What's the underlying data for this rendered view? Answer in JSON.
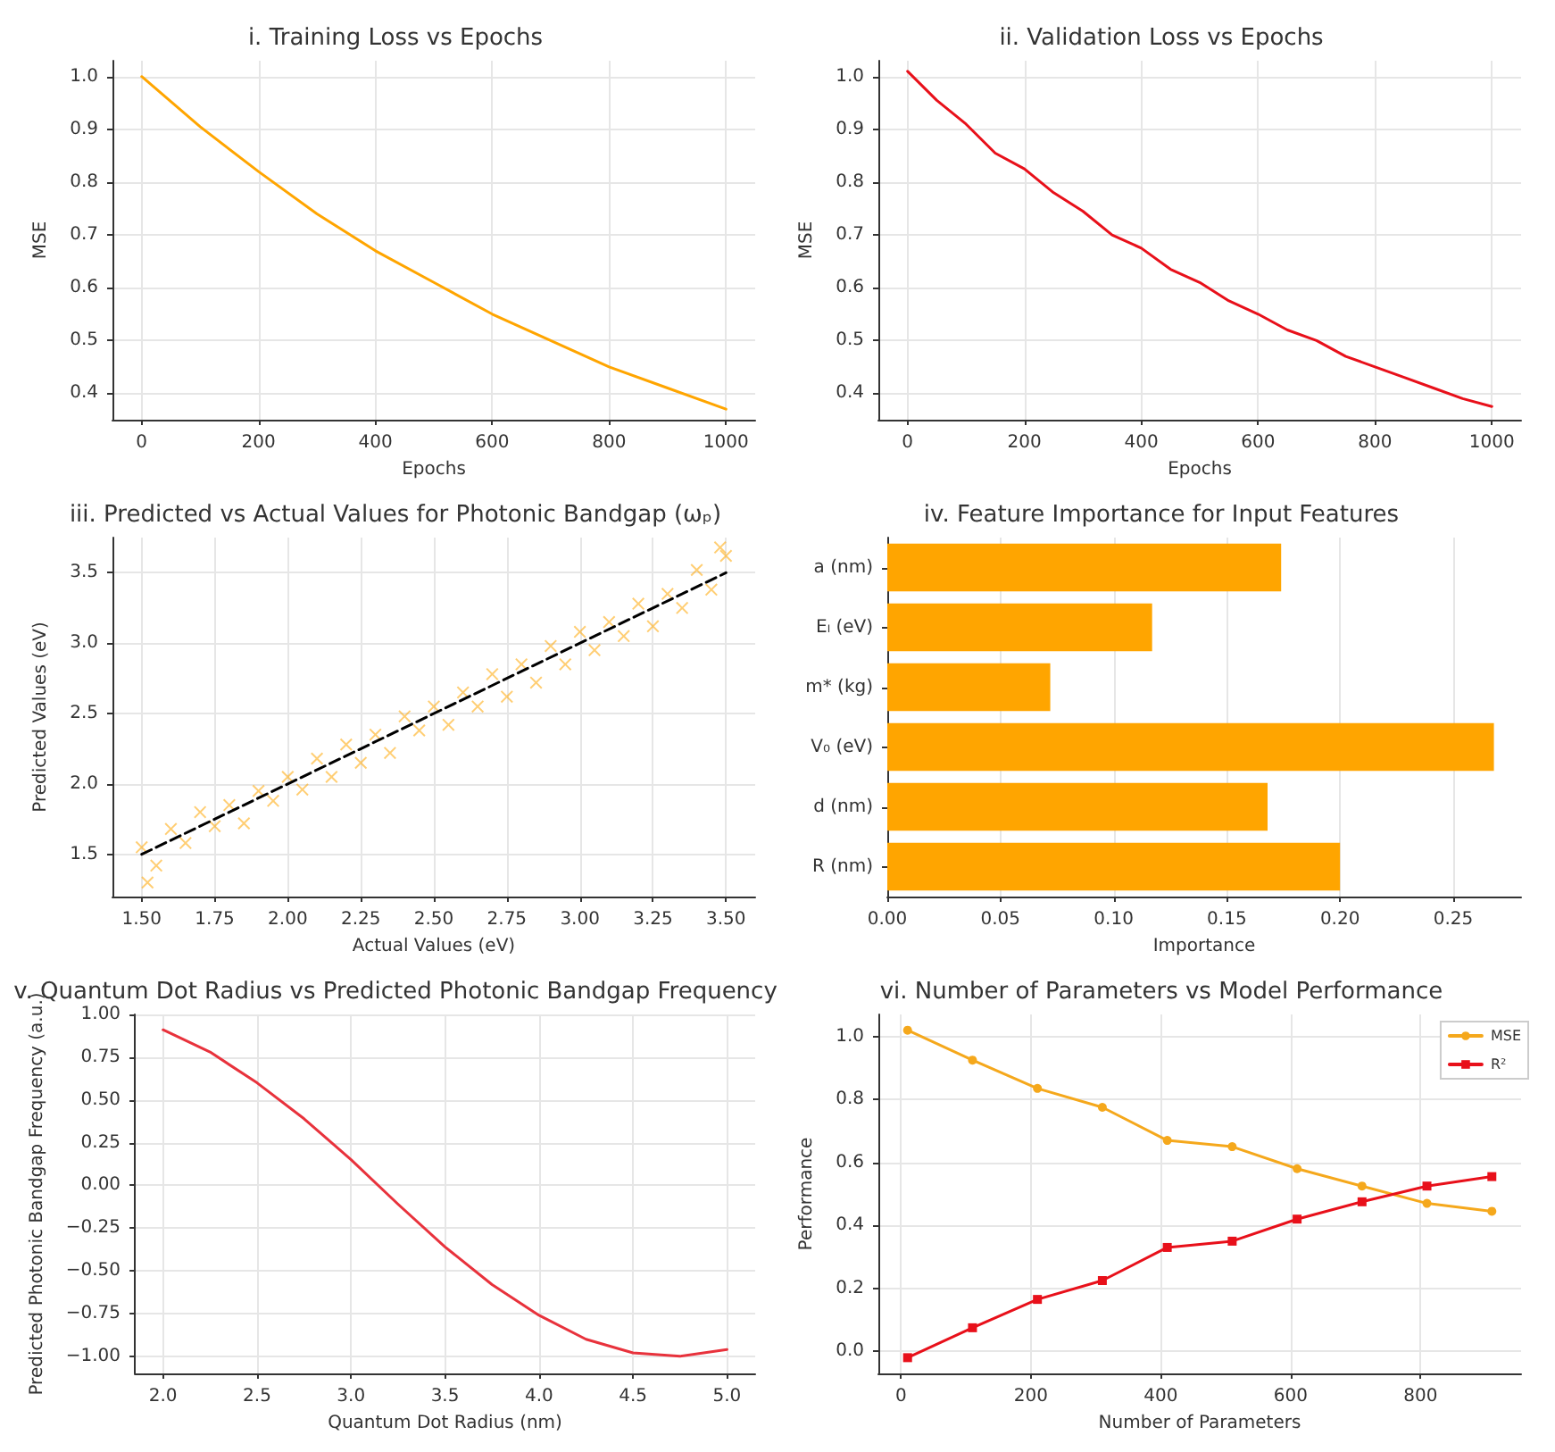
{
  "chart_data": [
    {
      "type": "line",
      "title": "i. Training Loss vs Epochs",
      "xlabel": "Epochs",
      "ylabel": "MSE",
      "grid": true,
      "xlim": [
        -50,
        1050
      ],
      "ylim": [
        0.35,
        1.03
      ],
      "xticks": [
        0,
        200,
        400,
        600,
        800,
        1000
      ],
      "yticks": [
        0.4,
        0.5,
        0.6,
        0.7,
        0.8,
        0.9,
        {
          "value": 1,
          "label": "1.0"
        }
      ],
      "x": [
        0,
        100,
        200,
        300,
        400,
        500,
        600,
        700,
        800,
        900,
        1000
      ],
      "series": [
        {
          "color": "#ffa500",
          "values": [
            1.0,
            0.905,
            0.82,
            0.74,
            0.67,
            0.61,
            0.55,
            0.5,
            0.45,
            0.41,
            0.37
          ]
        }
      ]
    },
    {
      "type": "line",
      "title": "ii. Validation Loss vs Epochs",
      "xlabel": "Epochs",
      "ylabel": "MSE",
      "grid": true,
      "xlim": [
        -50,
        1050
      ],
      "ylim": [
        0.35,
        1.03
      ],
      "xticks": [
        0,
        200,
        400,
        600,
        800,
        1000
      ],
      "yticks": [
        0.4,
        0.5,
        0.6,
        0.7,
        0.8,
        0.9,
        {
          "value": 1,
          "label": "1.0"
        }
      ],
      "x": [
        0,
        50,
        100,
        150,
        200,
        250,
        300,
        350,
        400,
        450,
        500,
        550,
        600,
        650,
        700,
        750,
        800,
        850,
        900,
        950,
        1000
      ],
      "series": [
        {
          "color": "#e8101a",
          "values": [
            1.01,
            0.955,
            0.91,
            0.855,
            0.825,
            0.78,
            0.745,
            0.7,
            0.675,
            0.635,
            0.61,
            0.575,
            0.55,
            0.52,
            0.5,
            0.47,
            0.45,
            0.43,
            0.41,
            0.39,
            0.375
          ]
        }
      ]
    },
    {
      "type": "scatter",
      "title": "iii. Predicted vs Actual Values for Photonic Bandgap (ωₚ)",
      "xlabel": "Actual Values (eV)",
      "ylabel": "Predicted Values (eV)",
      "grid": true,
      "xlim": [
        1.4,
        3.6
      ],
      "ylim": [
        1.2,
        3.75
      ],
      "xticks": [
        {
          "value": 1.5,
          "label": "1.50"
        },
        1.75,
        {
          "value": 2,
          "label": "2.00"
        },
        2.25,
        {
          "value": 2.5,
          "label": "2.50"
        },
        2.75,
        {
          "value": 3,
          "label": "3.00"
        },
        3.25,
        {
          "value": 3.5,
          "label": "3.50"
        }
      ],
      "yticks": [
        1.5,
        {
          "value": 2,
          "label": "2.0"
        },
        2.5,
        {
          "value": 3,
          "label": "3.0"
        },
        3.5
      ],
      "series": [
        {
          "color": "#ffa500",
          "marker": "cross",
          "x": [
            1.5,
            1.52,
            1.55,
            1.6,
            1.65,
            1.7,
            1.75,
            1.8,
            1.85,
            1.9,
            1.95,
            2.0,
            2.05,
            2.1,
            2.15,
            2.2,
            2.25,
            2.3,
            2.35,
            2.4,
            2.45,
            2.5,
            2.55,
            2.6,
            2.65,
            2.7,
            2.75,
            2.8,
            2.85,
            2.9,
            2.95,
            3.0,
            3.05,
            3.1,
            3.15,
            3.2,
            3.25,
            3.3,
            3.35,
            3.4,
            3.45,
            3.48,
            3.5
          ],
          "values": [
            1.55,
            1.3,
            1.42,
            1.68,
            1.58,
            1.8,
            1.7,
            1.85,
            1.72,
            1.95,
            1.88,
            2.05,
            1.96,
            2.18,
            2.05,
            2.28,
            2.15,
            2.35,
            2.22,
            2.48,
            2.38,
            2.55,
            2.42,
            2.65,
            2.55,
            2.78,
            2.62,
            2.85,
            2.72,
            2.98,
            2.85,
            3.08,
            2.95,
            3.15,
            3.05,
            3.28,
            3.12,
            3.35,
            3.25,
            3.52,
            3.38,
            3.68,
            3.62
          ]
        },
        {
          "type": "line",
          "color": "#000000",
          "line_style": "dashed",
          "marker": "none",
          "x": [
            1.5,
            3.5
          ],
          "values": [
            1.5,
            3.5
          ]
        }
      ]
    },
    {
      "type": "bar",
      "orientation": "horizontal",
      "title": "iv. Feature Importance for Input Features",
      "xlabel": "Importance",
      "grid": true,
      "xlim": [
        0,
        0.28
      ],
      "xticks": [
        {
          "value": 0,
          "label": "0.00"
        },
        0.05,
        {
          "value": 0.1,
          "label": "0.10"
        },
        0.15,
        {
          "value": 0.2,
          "label": "0.20"
        },
        0.25
      ],
      "categories": [
        "a (nm)",
        "Eₗ (eV)",
        "m* (kg)",
        "V₀ (eV)",
        "d (nm)",
        "R (nm)"
      ],
      "series": [
        {
          "color": "#ffa500",
          "values": [
            0.174,
            0.117,
            0.072,
            0.268,
            0.168,
            0.2
          ]
        }
      ]
    },
    {
      "type": "line",
      "title": "v. Quantum Dot Radius vs Predicted Photonic Bandgap Frequency",
      "xlabel": "Quantum Dot Radius (nm)",
      "ylabel": "Predicted Photonic Bandgap Frequency (a.u.)",
      "grid": true,
      "xlim": [
        1.85,
        5.15
      ],
      "ylim": [
        -1.1,
        1.0
      ],
      "xticks": [
        {
          "value": 2,
          "label": "2.0"
        },
        2.5,
        {
          "value": 3,
          "label": "3.0"
        },
        3.5,
        {
          "value": 4,
          "label": "4.0"
        },
        4.5,
        {
          "value": 5,
          "label": "5.0"
        }
      ],
      "yticks": [
        {
          "value": -1,
          "label": "−1.00"
        },
        {
          "value": -0.75,
          "label": "−0.75"
        },
        {
          "value": -0.5,
          "label": "−0.50"
        },
        {
          "value": -0.25,
          "label": "−0.25"
        },
        {
          "value": 0,
          "label": "0.00"
        },
        0.25,
        {
          "value": 0.5,
          "label": "0.50"
        },
        0.75,
        {
          "value": 1,
          "label": "1.00"
        }
      ],
      "x": [
        2.0,
        2.25,
        2.5,
        2.75,
        3.0,
        3.25,
        3.5,
        3.75,
        4.0,
        4.25,
        4.5,
        4.75,
        5.0
      ],
      "series": [
        {
          "color": "#e8323c",
          "values": [
            0.91,
            0.78,
            0.6,
            0.39,
            0.15,
            -0.11,
            -0.36,
            -0.58,
            -0.76,
            -0.9,
            -0.98,
            -1.0,
            -0.96
          ]
        }
      ]
    },
    {
      "type": "line",
      "title": "vi. Number of Parameters vs Model Performance",
      "xlabel": "Number of Parameters",
      "ylabel": "Performance",
      "grid": true,
      "legend": "top right",
      "xlim": [
        -35,
        955
      ],
      "ylim": [
        -0.07,
        1.07
      ],
      "xticks": [
        0,
        200,
        400,
        600,
        800
      ],
      "yticks": [
        {
          "value": 0,
          "label": "0.0"
        },
        0.2,
        0.4,
        0.6,
        0.8,
        {
          "value": 1,
          "label": "1.0"
        }
      ],
      "x": [
        10,
        110,
        210,
        310,
        410,
        510,
        610,
        710,
        810,
        910
      ],
      "series": [
        {
          "name": "MSE",
          "color": "#f5a81c",
          "marker": "circle",
          "values": [
            1.02,
            0.925,
            0.835,
            0.775,
            0.67,
            0.65,
            0.58,
            0.525,
            0.47,
            0.445
          ]
        },
        {
          "name": "R²",
          "color": "#e8101a",
          "marker": "square",
          "values": [
            -0.02,
            0.075,
            0.165,
            0.225,
            0.33,
            0.35,
            0.42,
            0.475,
            0.525,
            0.555
          ]
        }
      ]
    }
  ]
}
